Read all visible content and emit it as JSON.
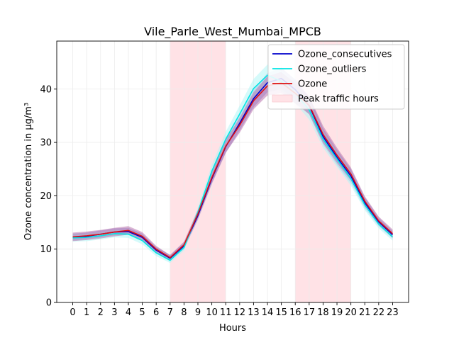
{
  "chart_data": {
    "type": "line",
    "title": "Vile_Parle_West_Mumbai_MPCB",
    "xlabel": "Hours",
    "ylabel": "Ozone concentration in µg/m³",
    "x": [
      0,
      1,
      2,
      3,
      4,
      5,
      6,
      7,
      8,
      9,
      10,
      11,
      12,
      13,
      14,
      15,
      16,
      17,
      18,
      19,
      20,
      21,
      22,
      23
    ],
    "xlim": [
      -1.15,
      24.15
    ],
    "ylim": [
      0,
      49
    ],
    "yticks": [
      0,
      10,
      20,
      30,
      40
    ],
    "grid": true,
    "legend_position": "top-right",
    "shaded_regions": [
      {
        "label": "Peak traffic hours",
        "x_start": 7,
        "x_end": 11,
        "color": "#ffe2e6"
      },
      {
        "label": "Peak traffic hours",
        "x_start": 16,
        "x_end": 20,
        "color": "#ffe2e6"
      }
    ],
    "series": [
      {
        "name": "Ozone_consecutives",
        "color": "#0000cc",
        "band_color": "#8b8bd6",
        "values": [
          12.2,
          12.4,
          12.8,
          13.2,
          13.3,
          12.2,
          9.8,
          8.3,
          10.6,
          16.3,
          23.2,
          29.2,
          33.6,
          38.2,
          41.2,
          42.0,
          39.9,
          36.9,
          31.1,
          27.2,
          23.7,
          18.7,
          15.1,
          12.7
        ],
        "lower": [
          11.6,
          11.8,
          12.2,
          12.6,
          12.7,
          11.5,
          9.2,
          7.8,
          10.0,
          15.5,
          22.2,
          28.0,
          32.2,
          36.6,
          39.4,
          40.0,
          38.0,
          35.2,
          29.6,
          25.8,
          22.4,
          17.7,
          14.3,
          12.0
        ],
        "upper": [
          12.9,
          13.1,
          13.5,
          13.9,
          14.0,
          12.9,
          10.4,
          8.9,
          11.2,
          17.1,
          24.2,
          30.4,
          35.0,
          39.8,
          43.0,
          44.0,
          41.8,
          38.6,
          32.6,
          28.6,
          25.0,
          19.7,
          15.9,
          13.4
        ]
      },
      {
        "name": "Ozone_outliers",
        "color": "#00e5e5",
        "band_color": "#b3f5f5",
        "values": [
          12.1,
          12.2,
          12.5,
          12.9,
          12.8,
          11.6,
          9.3,
          7.9,
          10.3,
          16.9,
          24.6,
          30.6,
          35.3,
          40.1,
          42.6,
          41.5,
          39.2,
          36.1,
          30.6,
          26.9,
          23.2,
          18.3,
          14.7,
          12.3
        ],
        "lower": [
          11.4,
          11.5,
          11.8,
          12.2,
          12.1,
          10.9,
          8.7,
          7.4,
          9.7,
          16.0,
          23.4,
          29.2,
          33.7,
          38.3,
          40.6,
          39.6,
          37.3,
          34.3,
          29.0,
          25.4,
          21.9,
          17.3,
          13.9,
          11.6
        ],
        "upper": [
          12.8,
          12.9,
          13.2,
          13.6,
          13.5,
          12.3,
          9.9,
          8.4,
          10.9,
          17.8,
          25.8,
          32.0,
          36.9,
          41.9,
          44.6,
          43.4,
          41.1,
          37.9,
          32.2,
          28.4,
          24.5,
          19.3,
          15.5,
          13.0
        ]
      },
      {
        "name": "Ozone",
        "color": "#dd1111",
        "band_color": "#b46aa8",
        "values": [
          12.3,
          12.5,
          12.8,
          13.2,
          13.5,
          12.4,
          10.0,
          8.4,
          10.8,
          16.6,
          23.4,
          29.3,
          33.2,
          37.8,
          40.6,
          41.2,
          39.2,
          37.0,
          31.5,
          27.6,
          24.1,
          19.0,
          15.3,
          12.9
        ],
        "lower": [
          11.5,
          11.7,
          12.0,
          12.4,
          12.7,
          11.6,
          9.4,
          7.9,
          10.2,
          15.8,
          22.4,
          28.1,
          31.8,
          36.2,
          38.8,
          39.2,
          37.3,
          35.3,
          29.9,
          26.2,
          22.9,
          18.1,
          14.5,
          12.1
        ],
        "upper": [
          13.1,
          13.3,
          13.6,
          14.0,
          14.3,
          13.2,
          10.6,
          8.9,
          11.4,
          17.4,
          24.4,
          30.5,
          34.6,
          39.4,
          42.4,
          43.2,
          41.1,
          38.7,
          33.1,
          29.0,
          25.3,
          19.9,
          16.1,
          13.7
        ]
      }
    ]
  },
  "legend": {
    "items": [
      {
        "label": "Ozone_consecutives",
        "kind": "line",
        "color": "#0000cc"
      },
      {
        "label": "Ozone_outliers",
        "kind": "line",
        "color": "#00e5e5"
      },
      {
        "label": "Ozone",
        "kind": "line",
        "color": "#dd1111"
      },
      {
        "label": "Peak traffic hours",
        "kind": "patch",
        "color": "#ffe2e6"
      }
    ]
  }
}
